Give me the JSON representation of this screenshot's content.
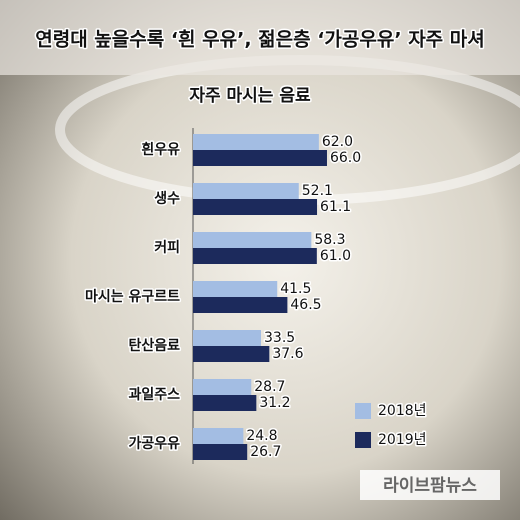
{
  "title": "연령대 높을수록 ‘흰 우유’, 젊은층 ‘가공우유’ 자주 마셔",
  "watermark": "라이브팜뉴스",
  "chart_data": {
    "type": "bar",
    "orientation": "horizontal",
    "title": "자주 마시는 음료",
    "categories": [
      "흰우유",
      "생수",
      "커피",
      "마시는 유구르트",
      "탄산음료",
      "과일주스",
      "가공우유"
    ],
    "series": [
      {
        "name": "2018년",
        "color": "#a3bde3",
        "values": [
          62.0,
          52.1,
          58.3,
          41.5,
          33.5,
          28.7,
          24.8
        ],
        "value_labels": [
          "62.0",
          "52.1",
          "58.3",
          "41.5",
          "33.5",
          "28.7",
          "24.8"
        ]
      },
      {
        "name": "2019년",
        "color": "#1c2a5c",
        "values": [
          66.0,
          61.1,
          61.0,
          46.5,
          37.6,
          31.2,
          26.7
        ],
        "value_labels": [
          "66.0",
          "61.1",
          "61.0",
          "46.5",
          "37.6",
          "31.2",
          "26.7"
        ]
      }
    ],
    "legend": "lower right"
  }
}
